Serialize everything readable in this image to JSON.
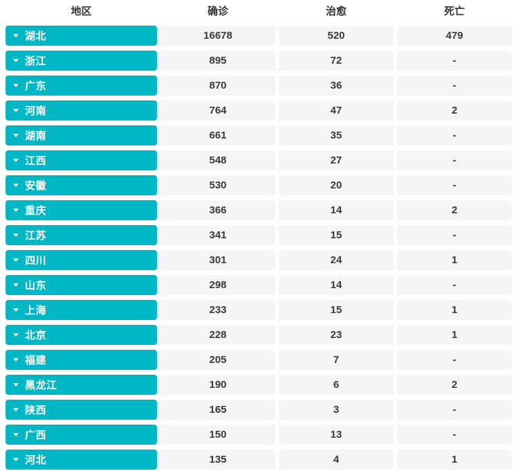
{
  "colors": {
    "accent_teal": "#00b7c3",
    "cell_background": "#f4f5f7",
    "text_dark": "#37393b",
    "region_text": "#ffffff"
  },
  "table": {
    "headers": {
      "region": "地区",
      "confirmed": "确诊",
      "cured": "治愈",
      "dead": "死亡"
    },
    "rows": [
      {
        "region": "湖北",
        "confirmed": "16678",
        "cured": "520",
        "dead": "479"
      },
      {
        "region": "浙江",
        "confirmed": "895",
        "cured": "72",
        "dead": "-"
      },
      {
        "region": "广东",
        "confirmed": "870",
        "cured": "36",
        "dead": "-"
      },
      {
        "region": "河南",
        "confirmed": "764",
        "cured": "47",
        "dead": "2"
      },
      {
        "region": "湖南",
        "confirmed": "661",
        "cured": "35",
        "dead": "-"
      },
      {
        "region": "江西",
        "confirmed": "548",
        "cured": "27",
        "dead": "-"
      },
      {
        "region": "安徽",
        "confirmed": "530",
        "cured": "20",
        "dead": "-"
      },
      {
        "region": "重庆",
        "confirmed": "366",
        "cured": "14",
        "dead": "2"
      },
      {
        "region": "江苏",
        "confirmed": "341",
        "cured": "15",
        "dead": "-"
      },
      {
        "region": "四川",
        "confirmed": "301",
        "cured": "24",
        "dead": "1"
      },
      {
        "region": "山东",
        "confirmed": "298",
        "cured": "14",
        "dead": "-"
      },
      {
        "region": "上海",
        "confirmed": "233",
        "cured": "15",
        "dead": "1"
      },
      {
        "region": "北京",
        "confirmed": "228",
        "cured": "23",
        "dead": "1"
      },
      {
        "region": "福建",
        "confirmed": "205",
        "cured": "7",
        "dead": "-"
      },
      {
        "region": "黑龙江",
        "confirmed": "190",
        "cured": "6",
        "dead": "2"
      },
      {
        "region": "陕西",
        "confirmed": "165",
        "cured": "3",
        "dead": "-"
      },
      {
        "region": "广西",
        "confirmed": "150",
        "cured": "13",
        "dead": "-"
      },
      {
        "region": "河北",
        "confirmed": "135",
        "cured": "4",
        "dead": "1"
      }
    ]
  }
}
